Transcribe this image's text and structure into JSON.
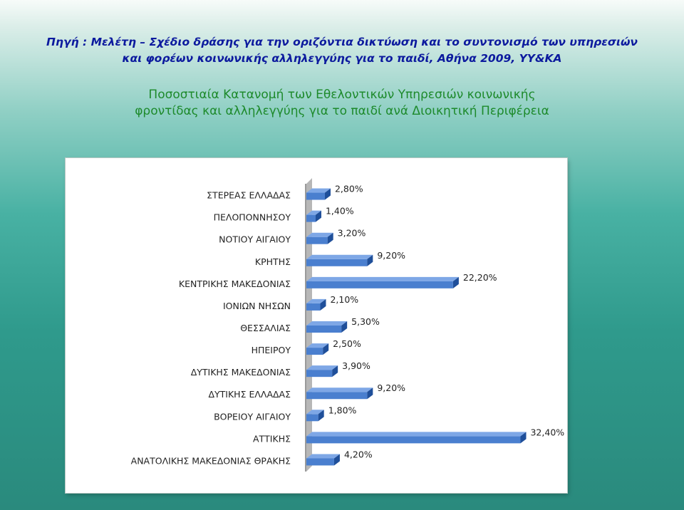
{
  "source": {
    "line1": "Πηγή : Μελέτη – Σχέδιο δράσης για την οριζόντια δικτύωση και το συντονισμό των υπηρεσιών",
    "line2": "και φορέων κοινωνικής αλληλεγγύης για το παιδί, Αθήνα 2009, ΥΥ&ΚΑ"
  },
  "heading": {
    "line1": "Ποσοστιαία Κατανομή των Εθελοντικών Υπηρεσιών κοινωνικής",
    "line2": "φροντίδας και αλληλεγγύης για το παιδί ανά Διοικητική Περιφέρεια"
  },
  "colors": {
    "bar_front": "#4a7fcf",
    "bar_top": "#7ea7e6",
    "bar_side": "#1f4f9a",
    "axis_face": "#b7b7b7",
    "background_teal": "#2f9a8c",
    "source_text": "#0c1a9e",
    "heading_text": "#1d8a2b"
  },
  "chart_data": {
    "type": "bar",
    "orientation": "horizontal",
    "style": "3d",
    "categories": [
      "ΣΤΕΡΕΑΣ ΕΛΛΑΔΑΣ",
      "ΠΕΛΟΠΟΝΝΗΣΟΥ",
      "ΝΟΤΙΟΥ ΑΙΓΑΙΟΥ",
      "ΚΡΗΤΗΣ",
      "ΚΕΝΤΡΙΚΗΣ ΜΑΚΕΔΟΝΙΑΣ",
      "ΙΟΝΙΩΝ ΝΗΣΩΝ",
      "ΘΕΣΣΑΛΙΑΣ",
      "ΗΠΕΙΡΟΥ",
      "ΔΥΤΙΚΗΣ ΜΑΚΕΔΟΝΙΑΣ",
      "ΔΥΤΙΚΗΣ ΕΛΛΑΔΑΣ",
      "ΒΟΡΕΙΟΥ ΑΙΓΑΙΟΥ",
      "ΑΤΤΙΚΗΣ",
      "ΑΝΑΤΟΛΙΚΗΣ ΜΑΚΕΔΟΝΙΑΣ ΘΡΑΚΗΣ"
    ],
    "values": [
      2.8,
      1.4,
      3.2,
      9.2,
      22.2,
      2.1,
      5.3,
      2.5,
      3.9,
      9.2,
      1.8,
      32.4,
      4.2
    ],
    "value_labels": [
      "2,80%",
      "1,40%",
      "3,20%",
      "9,20%",
      "22,20%",
      "2,10%",
      "5,30%",
      "2,50%",
      "3,90%",
      "9,20%",
      "1,80%",
      "32,40%",
      "4,20%"
    ],
    "unit": "%",
    "xlim": [
      0,
      34
    ],
    "grid": false,
    "legend": "none"
  }
}
